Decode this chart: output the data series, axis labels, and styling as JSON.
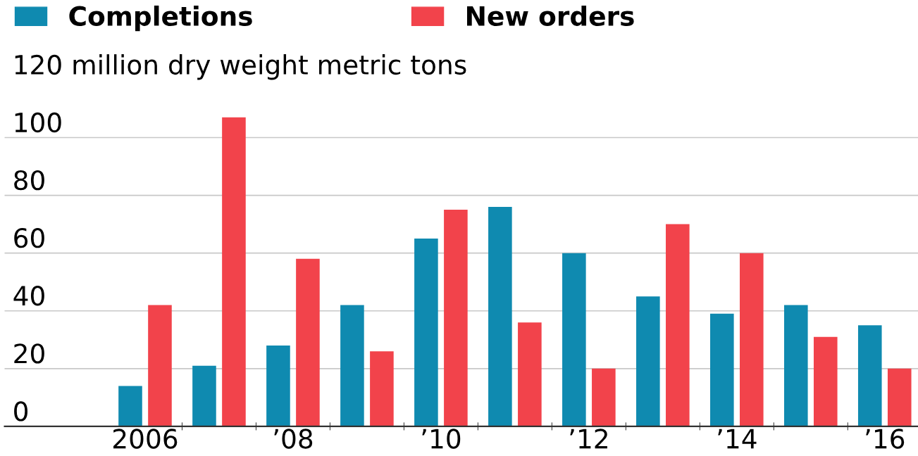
{
  "chart_data": {
    "type": "bar",
    "categories": [
      "2006",
      null,
      "’08",
      null,
      "’10",
      null,
      "’12",
      null,
      "’14",
      null,
      "’16"
    ],
    "series": [
      {
        "name": "Completions",
        "color": "#0f8ab0",
        "values": [
          14,
          21,
          28,
          42,
          65,
          76,
          60,
          45,
          39,
          42,
          35
        ]
      },
      {
        "name": "New orders",
        "color": "#f2434b",
        "values": [
          42,
          107,
          58,
          26,
          75,
          36,
          20,
          70,
          60,
          31,
          20
        ]
      }
    ],
    "ylim": [
      0,
      120
    ],
    "yticks": [
      0,
      20,
      40,
      60,
      80,
      100,
      {
        "value": 120,
        "label": "120 million dry weight metric tons"
      }
    ],
    "grid": "y",
    "legend": "top"
  }
}
